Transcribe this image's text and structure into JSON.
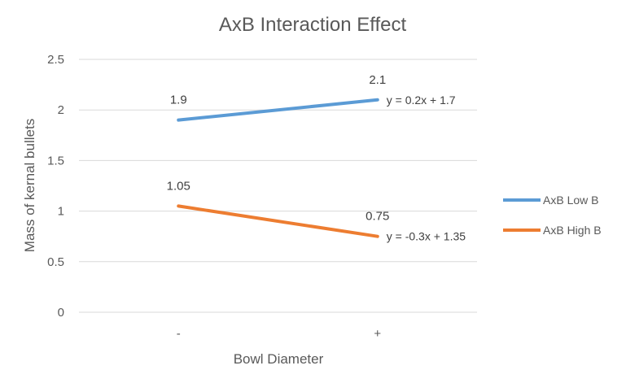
{
  "chart_data": {
    "type": "line",
    "title": "AxB Interaction Effect",
    "xlabel": "Bowl Diameter",
    "ylabel": "Mass of kernal bullets",
    "categories": [
      "-",
      "+"
    ],
    "ylim": [
      0,
      2.5
    ],
    "yticks": [
      "0",
      "0.5",
      "1",
      "1.5",
      "2",
      "2.5"
    ],
    "grid": true,
    "legend_position": "right",
    "series": [
      {
        "name": "AxB Low B",
        "values": [
          1.9,
          2.1
        ],
        "labels": [
          "1.9",
          "2.1"
        ],
        "color": "#5b9bd5",
        "trendline": "y = 0.2x + 1.7"
      },
      {
        "name": "AxB High B",
        "values": [
          1.05,
          0.75
        ],
        "labels": [
          "1.05",
          "0.75"
        ],
        "color": "#ed7d31",
        "trendline": "y = -0.3x + 1.35"
      }
    ]
  }
}
